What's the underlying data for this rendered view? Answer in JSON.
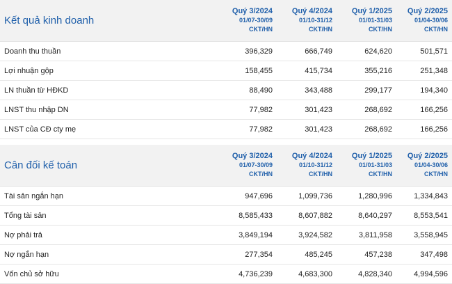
{
  "income": {
    "title": "Kết quả kinh doanh",
    "periods": [
      {
        "q": "Quý 3/2024",
        "range": "01/07-30/09",
        "unit": "CKT/HN"
      },
      {
        "q": "Quý 4/2024",
        "range": "01/10-31/12",
        "unit": "CKT/HN"
      },
      {
        "q": "Quý 1/2025",
        "range": "01/01-31/03",
        "unit": "CKT/HN"
      },
      {
        "q": "Quý 2/2025",
        "range": "01/04-30/06",
        "unit": "CKT/HN"
      }
    ],
    "rows": [
      {
        "label": "Doanh thu thuần",
        "values": [
          "396,329",
          "666,749",
          "624,620",
          "501,571"
        ]
      },
      {
        "label": "Lợi nhuận gộp",
        "values": [
          "158,455",
          "415,734",
          "355,216",
          "251,348"
        ]
      },
      {
        "label": "LN thuần từ HĐKD",
        "values": [
          "88,490",
          "343,488",
          "299,177",
          "194,340"
        ]
      },
      {
        "label": "LNST thu nhập DN",
        "values": [
          "77,982",
          "301,423",
          "268,692",
          "166,256"
        ]
      },
      {
        "label": "LNST của CĐ cty mẹ",
        "values": [
          "77,982",
          "301,423",
          "268,692",
          "166,256"
        ]
      }
    ]
  },
  "balance": {
    "title": "Cân đối kế toán",
    "periods": [
      {
        "q": "Quý 3/2024",
        "range": "01/07-30/09",
        "unit": "CKT/HN"
      },
      {
        "q": "Quý 4/2024",
        "range": "01/10-31/12",
        "unit": "CKT/HN"
      },
      {
        "q": "Quý 1/2025",
        "range": "01/01-31/03",
        "unit": "CKT/HN"
      },
      {
        "q": "Quý 2/2025",
        "range": "01/04-30/06",
        "unit": "CKT/HN"
      }
    ],
    "rows": [
      {
        "label": "Tài sản ngắn hạn",
        "values": [
          "947,696",
          "1,099,736",
          "1,280,996",
          "1,334,843"
        ]
      },
      {
        "label": "Tổng tài sản",
        "values": [
          "8,585,433",
          "8,607,882",
          "8,640,297",
          "8,553,541"
        ]
      },
      {
        "label": "Nợ phải trả",
        "values": [
          "3,849,194",
          "3,924,582",
          "3,811,958",
          "3,558,945"
        ]
      },
      {
        "label": "Nợ ngắn hạn",
        "values": [
          "277,354",
          "485,245",
          "457,238",
          "347,498"
        ]
      },
      {
        "label": "Vốn chủ sở hữu",
        "values": [
          "4,736,239",
          "4,683,300",
          "4,828,340",
          "4,994,596"
        ]
      }
    ]
  }
}
